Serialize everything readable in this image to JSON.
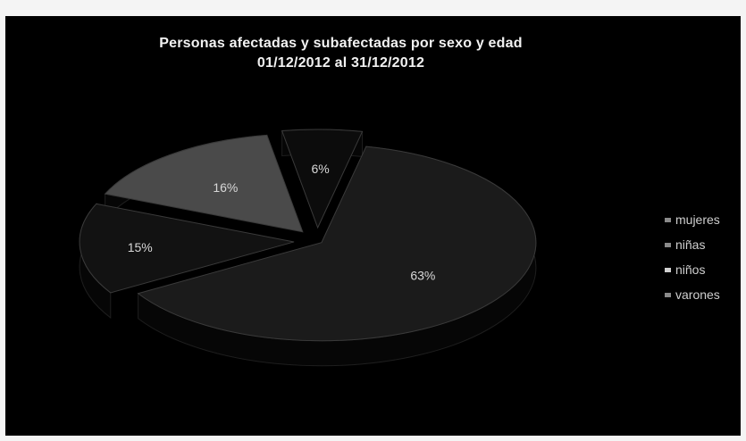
{
  "chart_data": {
    "type": "pie",
    "title": "Personas afectadas y subafectadas  por sexo y edad",
    "subtitle": "01/12/2012 al 31/12/2012",
    "categories": [
      "mujeres",
      "niñas",
      "niños",
      "varones"
    ],
    "values": [
      63,
      15,
      16,
      6
    ],
    "labels": [
      "63%",
      "15%",
      "16%",
      "6%"
    ],
    "colors": [
      "#1b1b1b",
      "#121212",
      "#4a4a4a",
      "#0c0c0c"
    ],
    "legend_colors": [
      "#8a8a8a",
      "#8a8a8a",
      "#d0d0d0",
      "#8a8a8a"
    ],
    "legend_position": "right",
    "exploded": true,
    "three_d": true
  }
}
